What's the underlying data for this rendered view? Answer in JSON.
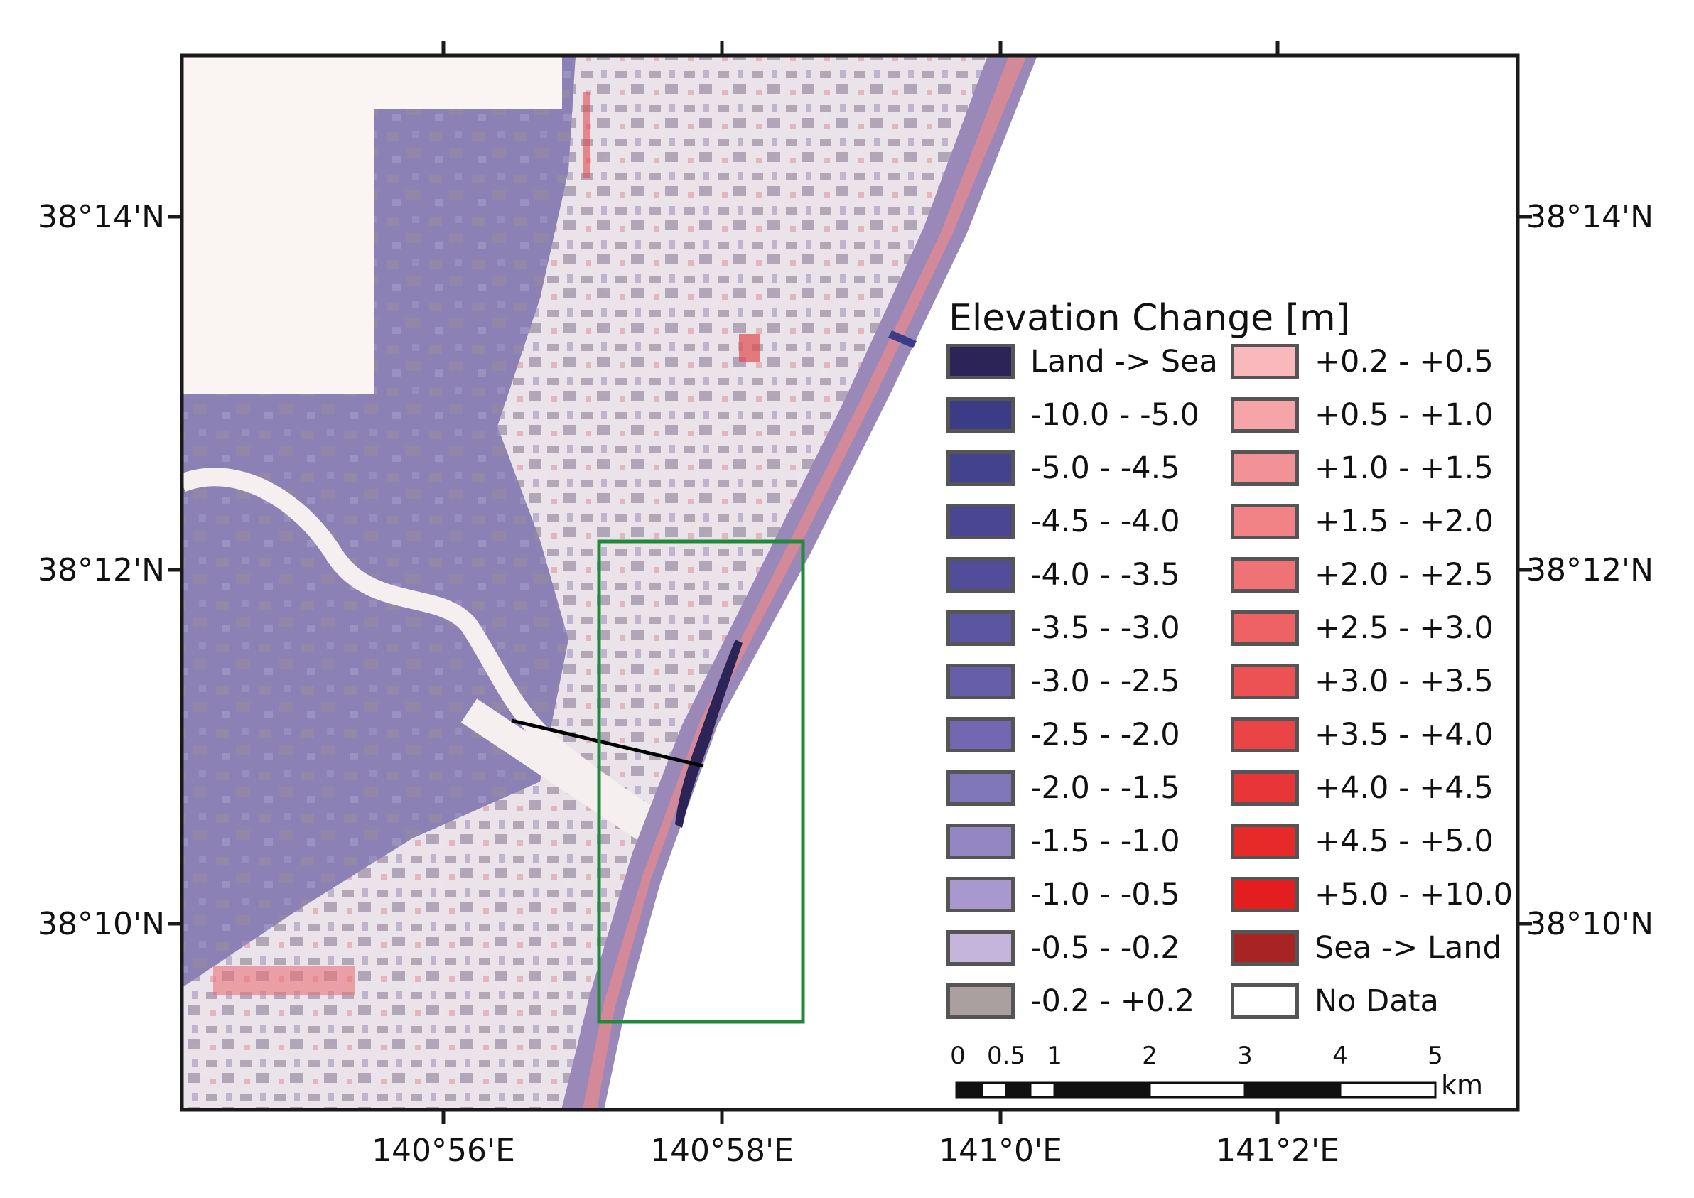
{
  "map": {
    "lat_labels": [
      "38°14'N",
      "38°12'N",
      "38°10'N"
    ],
    "lon_labels": [
      "140°56'E",
      "140°58'E",
      "141°0'E",
      "141°2'E"
    ],
    "colors": {
      "frame": "#1a1a1a",
      "study_box": "#1f8a3a",
      "profile_line": "#000000",
      "land_base": "#8a80b4",
      "sea": "#ffffff"
    }
  },
  "legend": {
    "title": "Elevation Change [m]",
    "items": [
      {
        "label": "Land -> Sea",
        "color": "#2c2456"
      },
      {
        "label": "-10.0 - -5.0",
        "color": "#3c3b86"
      },
      {
        "label": "-5.0 - -4.5",
        "color": "#43428e"
      },
      {
        "label": "-4.5 - -4.0",
        "color": "#4a4694"
      },
      {
        "label": "-4.0 - -3.5",
        "color": "#524c9a"
      },
      {
        "label": "-3.5 - -3.0",
        "color": "#5c55a2"
      },
      {
        "label": "-3.0 - -2.5",
        "color": "#665ea8"
      },
      {
        "label": "-2.5 - -2.0",
        "color": "#7267b0"
      },
      {
        "label": "-2.0 - -1.5",
        "color": "#8077b8"
      },
      {
        "label": "-1.5 - -1.0",
        "color": "#9386c2"
      },
      {
        "label": "-1.0 - -0.5",
        "color": "#a898cd"
      },
      {
        "label": "-0.5 - -0.2",
        "color": "#c3b5dc"
      },
      {
        "label": "-0.2 - +0.2",
        "color": "#aaa0a0"
      },
      {
        "label": "+0.2 - +0.5",
        "color": "#f8b8bc"
      },
      {
        "label": "+0.5 - +1.0",
        "color": "#f5a4a8"
      },
      {
        "label": "+1.0 - +1.5",
        "color": "#f39296"
      },
      {
        "label": "+1.5 - +2.0",
        "color": "#f18286"
      },
      {
        "label": "+2.0 - +2.5",
        "color": "#ef7274"
      },
      {
        "label": "+2.5 - +3.0",
        "color": "#ee6264"
      },
      {
        "label": "+3.0 - +3.5",
        "color": "#ec5254"
      },
      {
        "label": "+3.5 - +4.0",
        "color": "#ea4446"
      },
      {
        "label": "+4.0 - +4.5",
        "color": "#e83638"
      },
      {
        "label": "+4.5 - +5.0",
        "color": "#e62a2a"
      },
      {
        "label": "+5.0 - +10.0",
        "color": "#e41e1e"
      },
      {
        "label": "Sea -> Land",
        "color": "#a82422"
      },
      {
        "label": "No Data",
        "color": "#ffffff"
      }
    ]
  },
  "scalebar": {
    "labels": [
      "0",
      "0.5",
      "1",
      "2",
      "3",
      "4",
      "5"
    ],
    "unit": "km"
  }
}
